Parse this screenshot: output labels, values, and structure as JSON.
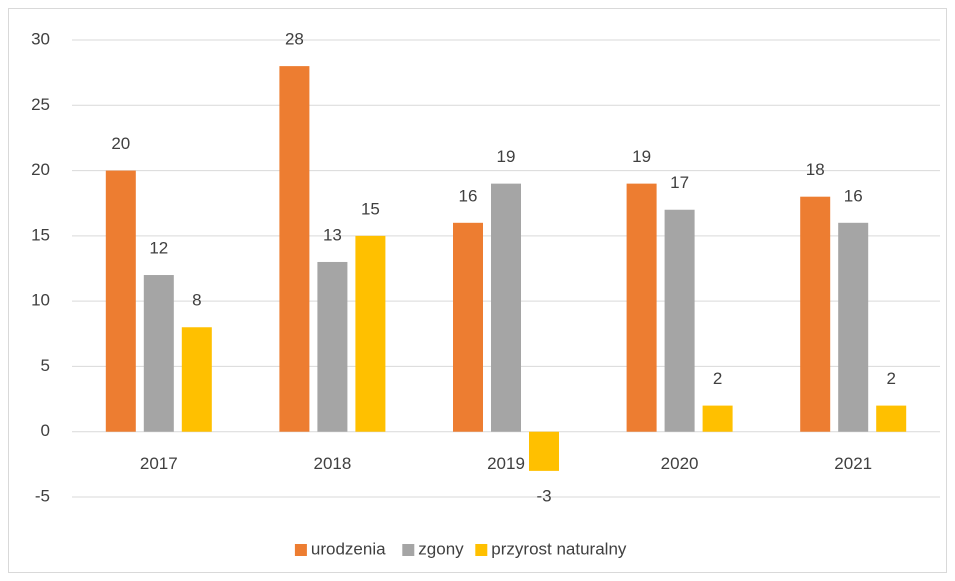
{
  "chart_data": {
    "type": "bar",
    "categories": [
      "2017",
      "2018",
      "2019",
      "2020",
      "2021"
    ],
    "series": [
      {
        "name": "urodzenia",
        "color": "#ed7d31",
        "values": [
          20,
          28,
          16,
          19,
          18
        ]
      },
      {
        "name": "zgony",
        "color": "#a5a5a5",
        "values": [
          12,
          13,
          19,
          17,
          16
        ]
      },
      {
        "name": "przyrost naturalny",
        "color": "#ffc000",
        "values": [
          8,
          15,
          -3,
          2,
          2
        ]
      }
    ],
    "ylim": [
      -5,
      30
    ],
    "yticks": [
      -5,
      0,
      5,
      10,
      15,
      20,
      25,
      30
    ],
    "grid": true,
    "legend": "bottom"
  }
}
